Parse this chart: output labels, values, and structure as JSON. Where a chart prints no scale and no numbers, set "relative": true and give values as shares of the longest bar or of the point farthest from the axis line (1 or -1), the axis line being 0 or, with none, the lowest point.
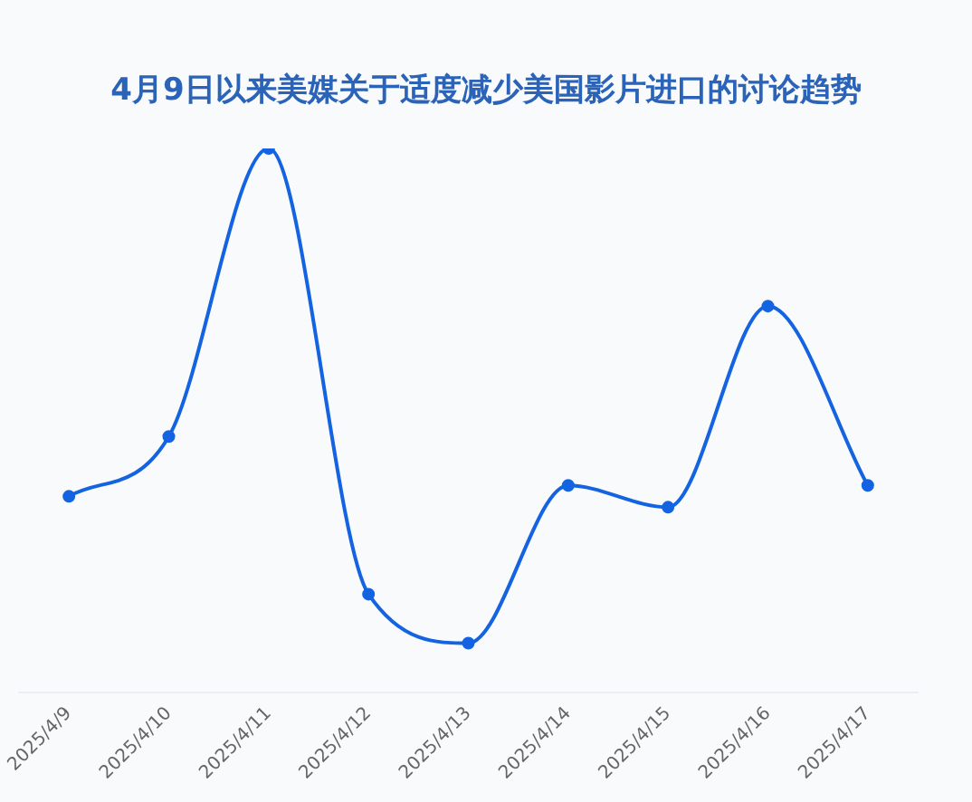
{
  "chart_data": {
    "type": "line",
    "title": "4月9日以来美媒关于适度减少美国影片进口的讨论趋势",
    "categories": [
      "2025/4/9",
      "2025/4/10",
      "2025/4/11",
      "2025/4/12",
      "2025/4/13",
      "2025/4/14",
      "2025/4/15",
      "2025/4/16",
      "2025/4/17"
    ],
    "relative": true,
    "grid": false,
    "legend": false,
    "marker": "circle",
    "line_style": "solid",
    "series": [
      {
        "color": "#1463e0",
        "values": [
          0.36,
          0.47,
          1,
          0.18,
          0.09,
          0.38,
          0.34,
          0.71,
          0.38
        ]
      }
    ]
  }
}
